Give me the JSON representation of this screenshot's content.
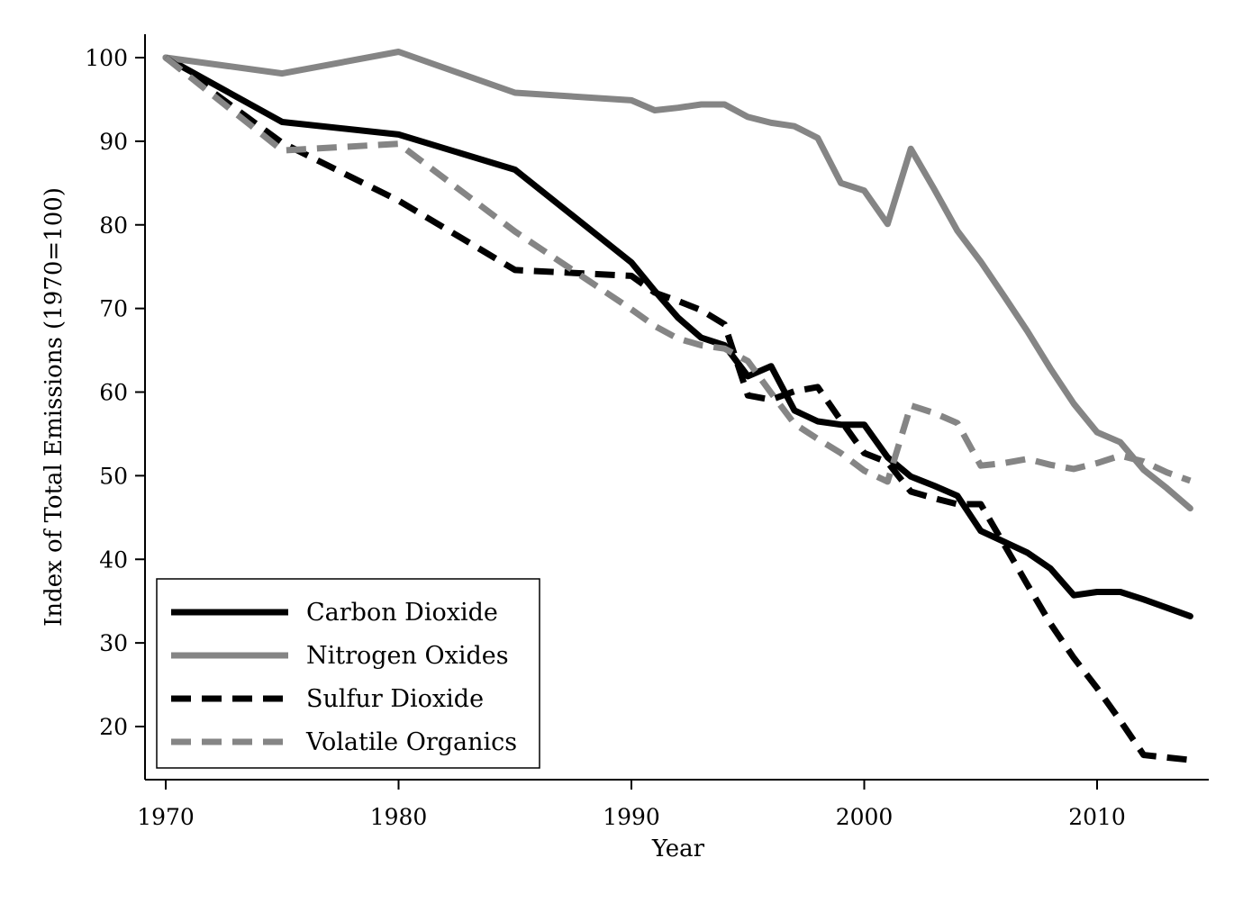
{
  "chart_data": {
    "type": "line",
    "title": "",
    "xlabel": "Year",
    "ylabel": "Index of Total Emissions (1970=100)",
    "xlim": [
      1969.3,
      2015
    ],
    "ylim": [
      13.6,
      103
    ],
    "xticks": [
      1970,
      1980,
      1990,
      2000,
      2010
    ],
    "yticks": [
      20,
      30,
      40,
      50,
      60,
      70,
      80,
      90,
      100
    ],
    "grid": false,
    "legend_position": "bottom-left",
    "series": [
      {
        "name": "Carbon Dioxide",
        "color": "#000000",
        "dash": "solid",
        "points": [
          [
            1970,
            100
          ],
          [
            1975,
            92.3
          ],
          [
            1980,
            90.8
          ],
          [
            1985,
            86.6
          ],
          [
            1990,
            75.5
          ],
          [
            1991,
            72.1
          ],
          [
            1992,
            68.9
          ],
          [
            1993,
            66.5
          ],
          [
            1994,
            65.6
          ],
          [
            1995,
            61.9
          ],
          [
            1996,
            63.1
          ],
          [
            1997,
            57.8
          ],
          [
            1998,
            56.5
          ],
          [
            1999,
            56.1
          ],
          [
            2000,
            56.1
          ],
          [
            2001,
            52.2
          ],
          [
            2002,
            49.9
          ],
          [
            2003,
            48.8
          ],
          [
            2004,
            47.6
          ],
          [
            2005,
            43.4
          ],
          [
            2006,
            42.1
          ],
          [
            2007,
            40.8
          ],
          [
            2008,
            38.9
          ],
          [
            2009,
            35.7
          ],
          [
            2010,
            36.1
          ],
          [
            2011,
            36.1
          ],
          [
            2012,
            35.2
          ],
          [
            2013,
            34.2
          ],
          [
            2014,
            33.2
          ]
        ]
      },
      {
        "name": "Nitrogen Oxides",
        "color": "#858585",
        "dash": "solid",
        "points": [
          [
            1970,
            100
          ],
          [
            1975,
            98.1
          ],
          [
            1980,
            100.7
          ],
          [
            1985,
            95.8
          ],
          [
            1990,
            94.9
          ],
          [
            1991,
            93.7
          ],
          [
            1992,
            94.0
          ],
          [
            1993,
            94.4
          ],
          [
            1994,
            94.4
          ],
          [
            1995,
            92.9
          ],
          [
            1996,
            92.2
          ],
          [
            1997,
            91.8
          ],
          [
            1998,
            90.4
          ],
          [
            1999,
            85.0
          ],
          [
            2000,
            84.1
          ],
          [
            2001,
            80.1
          ],
          [
            2002,
            89.1
          ],
          [
            2003,
            84.3
          ],
          [
            2004,
            79.3
          ],
          [
            2005,
            75.6
          ],
          [
            2006,
            71.5
          ],
          [
            2007,
            67.3
          ],
          [
            2008,
            62.8
          ],
          [
            2009,
            58.6
          ],
          [
            2010,
            55.2
          ],
          [
            2011,
            54.0
          ],
          [
            2012,
            50.7
          ],
          [
            2013,
            48.5
          ],
          [
            2014,
            46.1
          ]
        ]
      },
      {
        "name": "Sulfur Dioxide",
        "color": "#000000",
        "dash": "dashed",
        "points": [
          [
            1970,
            100
          ],
          [
            1975,
            89.8
          ],
          [
            1980,
            82.9
          ],
          [
            1985,
            74.6
          ],
          [
            1990,
            73.9
          ],
          [
            1991,
            71.9
          ],
          [
            1992,
            70.9
          ],
          [
            1993,
            69.8
          ],
          [
            1994,
            68.1
          ],
          [
            1995,
            59.6
          ],
          [
            1996,
            59.1
          ],
          [
            1997,
            60.1
          ],
          [
            1998,
            60.6
          ],
          [
            1999,
            56.6
          ],
          [
            2000,
            52.7
          ],
          [
            2001,
            51.6
          ],
          [
            2002,
            48.1
          ],
          [
            2003,
            47.3
          ],
          [
            2004,
            46.6
          ],
          [
            2005,
            46.6
          ],
          [
            2006,
            41.8
          ],
          [
            2007,
            37.0
          ],
          [
            2008,
            32.3
          ],
          [
            2009,
            28.2
          ],
          [
            2010,
            24.6
          ],
          [
            2011,
            20.7
          ],
          [
            2012,
            16.6
          ],
          [
            2013,
            16.3
          ],
          [
            2014,
            16.0
          ]
        ]
      },
      {
        "name": "Volatile Organics",
        "color": "#858585",
        "dash": "dashed",
        "points": [
          [
            1970,
            100
          ],
          [
            1975,
            88.9
          ],
          [
            1980,
            89.7
          ],
          [
            1985,
            79.2
          ],
          [
            1990,
            69.9
          ],
          [
            1991,
            67.9
          ],
          [
            1992,
            66.4
          ],
          [
            1993,
            65.6
          ],
          [
            1994,
            65.2
          ],
          [
            1995,
            63.7
          ],
          [
            1996,
            59.9
          ],
          [
            1997,
            56.2
          ],
          [
            1998,
            54.4
          ],
          [
            1999,
            52.7
          ],
          [
            2000,
            50.6
          ],
          [
            2001,
            49.3
          ],
          [
            2002,
            58.4
          ],
          [
            2003,
            57.5
          ],
          [
            2004,
            56.3
          ],
          [
            2005,
            51.2
          ],
          [
            2006,
            51.5
          ],
          [
            2007,
            52.0
          ],
          [
            2008,
            51.3
          ],
          [
            2009,
            50.8
          ],
          [
            2010,
            51.5
          ],
          [
            2011,
            52.4
          ],
          [
            2012,
            51.7
          ],
          [
            2013,
            50.4
          ],
          [
            2014,
            49.4
          ]
        ]
      }
    ]
  }
}
